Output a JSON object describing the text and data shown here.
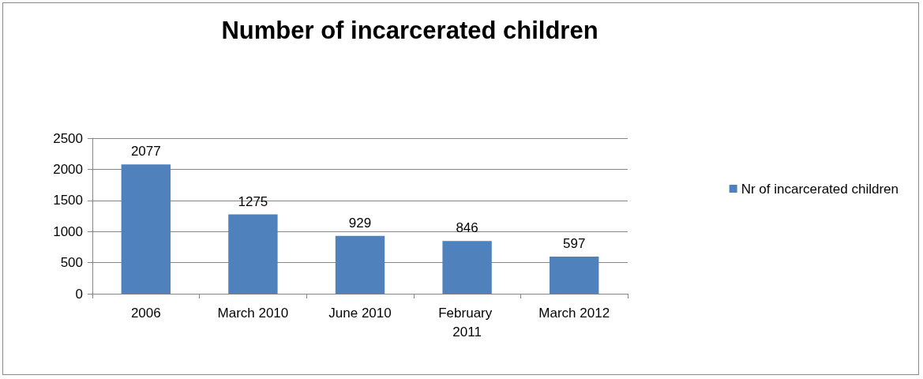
{
  "chart_data": {
    "type": "bar",
    "title": "Number of incarcerated children",
    "categories": [
      "2006",
      "March 2010",
      "June 2010",
      "February 2011",
      "March 2012"
    ],
    "series": [
      {
        "name": "Nr of incarcerated children",
        "color": "#4f81bd",
        "values": [
          2077,
          1275,
          929,
          846,
          597
        ]
      }
    ],
    "ylim": [
      0,
      2500
    ],
    "yticks": [
      0,
      500,
      1000,
      1500,
      2000,
      2500
    ],
    "grid": "y",
    "legend": "right",
    "data_labels": true
  }
}
